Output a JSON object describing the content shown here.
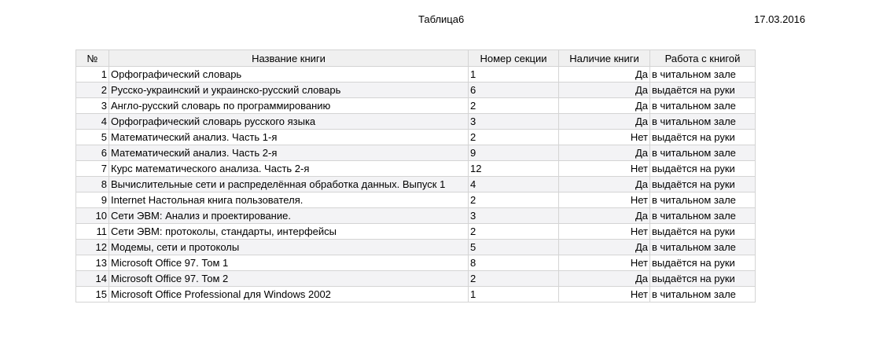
{
  "header": {
    "title": "Таблица6",
    "date": "17.03.2016"
  },
  "table": {
    "columns": [
      "№",
      "Название книги",
      "Номер секции",
      "Наличие книги",
      "Работа с книгой"
    ],
    "rows": [
      {
        "num": "1",
        "name": "Орфографический словарь",
        "section": "1",
        "available": "Да",
        "work": "в читальном зале"
      },
      {
        "num": "2",
        "name": "Русско-украинский и украинско-русский словарь",
        "section": "6",
        "available": "Да",
        "work": "выдаётся на руки"
      },
      {
        "num": "3",
        "name": "Англо-русский словарь по программированию",
        "section": "2",
        "available": "Да",
        "work": "в читальном зале"
      },
      {
        "num": "4",
        "name": "Орфографический словарь русского языка",
        "section": "3",
        "available": "Да",
        "work": "в читальном зале"
      },
      {
        "num": "5",
        "name": "Математический анализ. Часть 1-я",
        "section": "2",
        "available": "Нет",
        "work": "выдаётся на руки"
      },
      {
        "num": "6",
        "name": "Математический анализ. Часть 2-я",
        "section": "9",
        "available": "Да",
        "work": "в читальном зале"
      },
      {
        "num": "7",
        "name": "Курс математического анализа. Часть 2-я",
        "section": "12",
        "available": "Нет",
        "work": "выдаётся на руки"
      },
      {
        "num": "8",
        "name": "Вычислительные сети и распределённая обработка данных. Выпуск 1",
        "section": "4",
        "available": "Да",
        "work": "выдаётся на руки"
      },
      {
        "num": "9",
        "name": "Internet Настольная книга пользователя.",
        "section": "2",
        "available": "Нет",
        "work": "в читальном зале"
      },
      {
        "num": "10",
        "name": "Сети ЭВМ: Анализ и проектирование.",
        "section": "3",
        "available": "Да",
        "work": "в читальном зале"
      },
      {
        "num": "11",
        "name": "Сети ЭВМ: протоколы, стандарты, интерфейсы",
        "section": "2",
        "available": "Нет",
        "work": "выдаётся на руки"
      },
      {
        "num": "12",
        "name": "Модемы, сети и протоколы",
        "section": "5",
        "available": "Да",
        "work": "в читальном зале"
      },
      {
        "num": "13",
        "name": "Microsoft Office 97. Том 1",
        "section": "8",
        "available": "Нет",
        "work": "выдаётся на руки"
      },
      {
        "num": "14",
        "name": "Microsoft Office 97. Том 2",
        "section": "2",
        "available": "Да",
        "work": "выдаётся на руки"
      },
      {
        "num": "15",
        "name": "Microsoft Office Professional для Windows 2002",
        "section": "1",
        "available": "Нет",
        "work": "в читальном зале"
      }
    ]
  }
}
